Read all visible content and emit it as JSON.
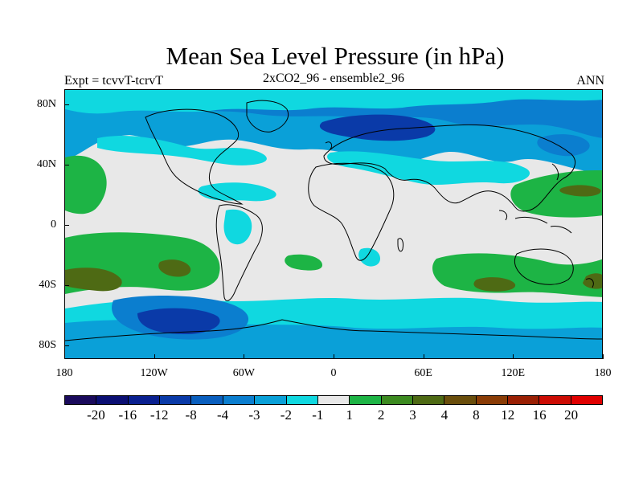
{
  "title": "Mean Sea Level Pressure (in hPa)",
  "subtitle_left": "Expt = tcvvT-tcrvT",
  "subtitle_center": "2xCO2_96 - ensemble2_96",
  "subtitle_right": "ANN",
  "y_ticks": [
    "80N",
    "40N",
    "0",
    "40S",
    "80S"
  ],
  "x_ticks": [
    "180",
    "120W",
    "60W",
    "0",
    "60E",
    "120E",
    "180"
  ],
  "colorbar": {
    "colors": [
      "#1a0a5c",
      "#0b0f73",
      "#0a2090",
      "#0a3aa8",
      "#0a5fbe",
      "#0b7ecf",
      "#0aa0d8",
      "#10d8e0",
      "#e8e8e8",
      "#1db445",
      "#3c8a20",
      "#4e6a14",
      "#6a4e0c",
      "#8a3c06",
      "#9a2004",
      "#cc0c04",
      "#e00000"
    ],
    "labels": [
      "-20",
      "-16",
      "-12",
      "-8",
      "-4",
      "-3",
      "-2",
      "-1",
      "1",
      "2",
      "3",
      "4",
      "8",
      "12",
      "16",
      "20"
    ]
  },
  "palette": {
    "neutral": "#e8e8e8",
    "light_cyan": "#10d8e0",
    "mid_blue": "#0aa0d8",
    "blue": "#0b7ecf",
    "dark_blue": "#0a3aa8",
    "green": "#1db445",
    "olive": "#4e6a14",
    "coast": "#000000"
  }
}
